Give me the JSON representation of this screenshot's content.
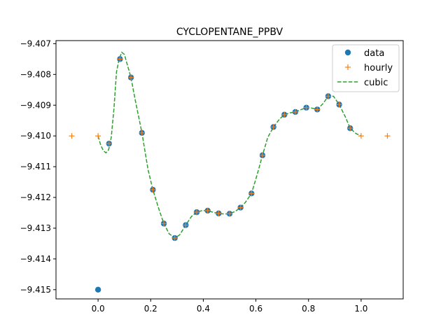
{
  "chart_data": {
    "type": "line",
    "title": "CYCLOPENTANE_PPBV",
    "xlabel": "",
    "ylabel": "",
    "xlim": [
      -0.16,
      1.16
    ],
    "ylim": [
      -9.4153,
      -9.4069
    ],
    "xticks": [
      0.0,
      0.2,
      0.4,
      0.6,
      0.8,
      1.0
    ],
    "xtick_labels": [
      "0.0",
      "0.2",
      "0.4",
      "0.6",
      "0.8",
      "1.0"
    ],
    "yticks": [
      -9.407,
      -9.408,
      -9.409,
      -9.41,
      -9.411,
      -9.412,
      -9.413,
      -9.414,
      -9.415
    ],
    "ytick_labels": [
      "−9.407",
      "−9.408",
      "−9.409",
      "−9.410",
      "−9.411",
      "−9.412",
      "−9.413",
      "−9.414",
      "−9.415"
    ],
    "grid": false,
    "legend_position": "top-right",
    "series": [
      {
        "name": "data",
        "style": "markers-circle",
        "color": "#1f77b4",
        "x": [
          0.0,
          0.0417,
          0.0833,
          0.125,
          0.1667,
          0.2083,
          0.25,
          0.2917,
          0.3333,
          0.375,
          0.4167,
          0.4583,
          0.5,
          0.5417,
          0.5833,
          0.625,
          0.6667,
          0.7083,
          0.75,
          0.7917,
          0.8333,
          0.875,
          0.9167,
          0.9583
        ],
        "y": [
          -9.415,
          -9.41025,
          -9.4075,
          -9.4081,
          -9.4099,
          -9.41175,
          -9.41285,
          -9.41332,
          -9.4129,
          -9.41248,
          -9.41243,
          -9.41252,
          -9.41253,
          -9.41233,
          -9.41187,
          -9.41063,
          -9.40971,
          -9.40931,
          -9.40922,
          -9.40908,
          -9.40914,
          -9.40871,
          -9.40898,
          -9.40975
        ]
      },
      {
        "name": "hourly",
        "style": "markers-plus",
        "color": "#ff7f0e",
        "x": [
          -0.1,
          0.0,
          0.0417,
          0.0833,
          0.125,
          0.1667,
          0.2083,
          0.25,
          0.2917,
          0.3333,
          0.375,
          0.4167,
          0.4583,
          0.5,
          0.5417,
          0.5833,
          0.625,
          0.6667,
          0.7083,
          0.75,
          0.7917,
          0.8333,
          0.875,
          0.9167,
          0.9583,
          1.0,
          1.1
        ],
        "y": [
          -9.41,
          -9.41,
          -9.41025,
          -9.4075,
          -9.4081,
          -9.4099,
          -9.41175,
          -9.41285,
          -9.41332,
          -9.4129,
          -9.41248,
          -9.41243,
          -9.41252,
          -9.41253,
          -9.41233,
          -9.41187,
          -9.41063,
          -9.40971,
          -9.40931,
          -9.40922,
          -9.40908,
          -9.40914,
          -9.40871,
          -9.40898,
          -9.40975,
          -9.41,
          -9.41
        ]
      },
      {
        "name": "cubic",
        "style": "dashed-line",
        "color": "#2ca02c",
        "x": [
          0.0,
          0.01,
          0.02,
          0.03,
          0.04,
          0.05,
          0.06,
          0.07,
          0.08,
          0.09,
          0.1,
          0.11,
          0.125,
          0.14,
          0.1667,
          0.19,
          0.2083,
          0.23,
          0.25,
          0.27,
          0.2917,
          0.31,
          0.3333,
          0.355,
          0.375,
          0.395,
          0.4167,
          0.44,
          0.4583,
          0.48,
          0.5,
          0.52,
          0.5417,
          0.56,
          0.5833,
          0.605,
          0.625,
          0.645,
          0.6667,
          0.69,
          0.7083,
          0.73,
          0.75,
          0.77,
          0.7917,
          0.81,
          0.8333,
          0.855,
          0.875,
          0.895,
          0.9167,
          0.94,
          0.9583,
          0.98,
          1.0
        ],
        "y": [
          -9.41,
          -9.4103,
          -9.41048,
          -9.41055,
          -9.41045,
          -9.41005,
          -9.40915,
          -9.40792,
          -9.4075,
          -9.40728,
          -9.40735,
          -9.40765,
          -9.4081,
          -9.40878,
          -9.4099,
          -9.4111,
          -9.41175,
          -9.41235,
          -9.41285,
          -9.41318,
          -9.41332,
          -9.41322,
          -9.4129,
          -9.41262,
          -9.41248,
          -9.41243,
          -9.41243,
          -9.41249,
          -9.41252,
          -9.41254,
          -9.41253,
          -9.41246,
          -9.41233,
          -9.41216,
          -9.41187,
          -9.41125,
          -9.41063,
          -9.41005,
          -9.40971,
          -9.40945,
          -9.40931,
          -9.40925,
          -9.40922,
          -9.40915,
          -9.40908,
          -9.40909,
          -9.40914,
          -9.40895,
          -9.40871,
          -9.40871,
          -9.40898,
          -9.40938,
          -9.40975,
          -9.40992,
          -9.41
        ]
      }
    ]
  }
}
